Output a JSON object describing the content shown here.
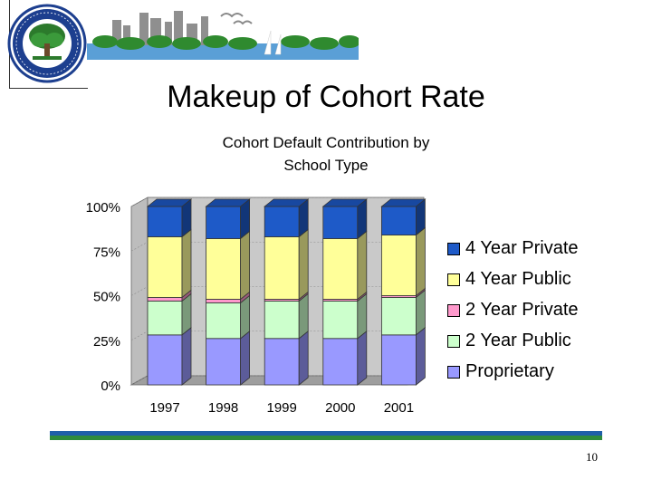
{
  "slide": {
    "title": "Makeup of Cohort Rate",
    "page_number": "10",
    "logo": {
      "seal_text": "DEPARTMENT OF EDUCATION · UNITED STATES OF AMERICA"
    },
    "footer_colors": [
      "#1f5fa8",
      "#2e8b3c"
    ]
  },
  "chart_data": {
    "type": "bar",
    "stacked": true,
    "percent": true,
    "title": "Cohort Default Contribution by School Type",
    "categories": [
      "1997",
      "1998",
      "1999",
      "2000",
      "2001"
    ],
    "y_ticks": [
      "0%",
      "25%",
      "50%",
      "75%",
      "100%"
    ],
    "ylim": [
      0,
      100
    ],
    "legend_position": "right",
    "series": [
      {
        "name": "Proprietary",
        "color": "#9999ff",
        "values": [
          28,
          26,
          26,
          26,
          28
        ]
      },
      {
        "name": "2 Year Public",
        "color": "#ccffcc",
        "values": [
          19,
          20,
          21,
          21,
          21
        ]
      },
      {
        "name": "2 Year Private",
        "color": "#ff99cc",
        "values": [
          2,
          2,
          1,
          1,
          1
        ]
      },
      {
        "name": "4 Year Public",
        "color": "#ffff99",
        "values": [
          34,
          34,
          35,
          34,
          34
        ]
      },
      {
        "name": "4 Year Private",
        "color": "#1e5ac8",
        "values": [
          17,
          18,
          17,
          18,
          16
        ]
      }
    ],
    "legend_order": [
      "4 Year Private",
      "4 Year Public",
      "2 Year Private",
      "2 Year Public",
      "Proprietary"
    ]
  }
}
